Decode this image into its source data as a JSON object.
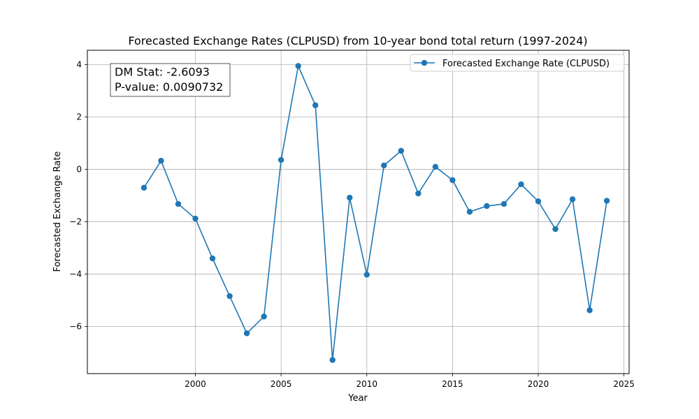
{
  "chart_data": {
    "type": "line",
    "title": "Forecasted Exchange Rates (CLPUSD) from 10-year bond total return (1997-2024)",
    "xlabel": "Year",
    "ylabel": "Forecasted Exchange Rate",
    "xlim": [
      1993.7,
      2025.3
    ],
    "ylim": [
      -7.8,
      4.55
    ],
    "xticks": [
      2000,
      2005,
      2010,
      2015,
      2020,
      2025
    ],
    "xtick_labels": [
      "2000",
      "2005",
      "2010",
      "2015",
      "2020",
      "2025"
    ],
    "yticks": [
      4,
      2,
      0,
      -2,
      -4,
      -6
    ],
    "ytick_labels": [
      "4",
      "2",
      "0",
      "−2",
      "−4",
      "−6"
    ],
    "grid": true,
    "legend_position": "top-right",
    "series": [
      {
        "name": "Forecasted Exchange Rate (CLPUSD)",
        "color": "#1f77b4",
        "marker": "circle",
        "x": [
          1997,
          1998,
          1999,
          2000,
          2001,
          2002,
          2003,
          2004,
          2005,
          2006,
          2007,
          2008,
          2009,
          2010,
          2011,
          2012,
          2013,
          2014,
          2015,
          2016,
          2017,
          2018,
          2019,
          2020,
          2021,
          2022,
          2023,
          2024
        ],
        "y": [
          -0.7,
          0.33,
          -1.32,
          -1.88,
          -3.4,
          -4.84,
          -6.26,
          -5.62,
          0.36,
          3.95,
          2.45,
          -7.28,
          -1.08,
          -4.02,
          0.15,
          0.71,
          -0.92,
          0.1,
          -0.41,
          -1.62,
          -1.4,
          -1.32,
          -0.57,
          -1.22,
          -2.28,
          -1.14,
          -5.38,
          -1.2
        ]
      }
    ],
    "annotations": {
      "dm_stat": "DM Stat: -2.6093",
      "p_value": "P-value: 0.0090732"
    }
  }
}
